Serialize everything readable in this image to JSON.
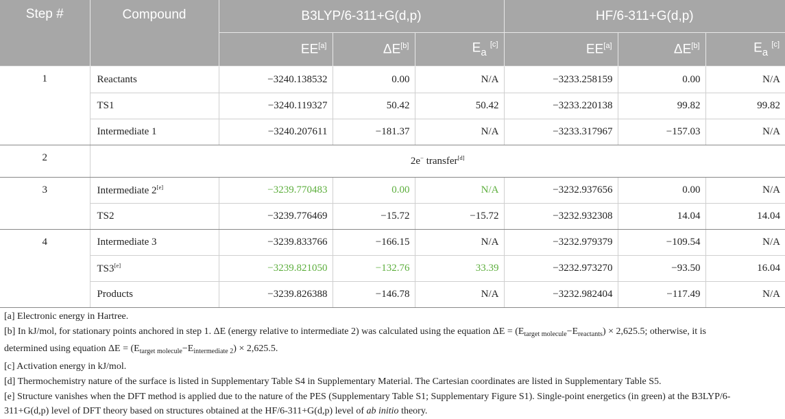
{
  "table": {
    "headers": {
      "step": "Step #",
      "compound": "Compound",
      "group1": "B3LYP/6-311+G(d,p)",
      "group2": "HF/6-311+G(d,p)",
      "ee": "EE",
      "ee_note": "[a]",
      "de": "ΔE",
      "de_note": "[b]",
      "ea_base": "E",
      "ea_sub": "a",
      "ea_note": "[c]"
    },
    "rows": [
      {
        "step": "1",
        "compound": "Reactants",
        "b_ee": "−3240.138532",
        "b_de": "0.00",
        "b_ea": "N/A",
        "h_ee": "−3233.258159",
        "h_de": "0.00",
        "h_ea": "N/A"
      },
      {
        "step": "",
        "compound": "TS1",
        "b_ee": "−3240.119327",
        "b_de": "50.42",
        "b_ea": "50.42",
        "h_ee": "−3233.220138",
        "h_de": "99.82",
        "h_ea": "99.82"
      },
      {
        "step": "",
        "compound": "Intermediate 1",
        "b_ee": "−3240.207611",
        "b_de": "−181.37",
        "b_ea": "N/A",
        "h_ee": "−3233.317967",
        "h_de": "−157.03",
        "h_ea": "N/A"
      },
      {
        "step": "3",
        "compound": "Intermediate 2",
        "compound_note": "[e]",
        "b_ee": "−3239.770483",
        "b_de": "0.00",
        "b_ea": "N/A",
        "h_ee": "−3232.937656",
        "h_de": "0.00",
        "h_ea": "N/A"
      },
      {
        "step": "",
        "compound": "TS2",
        "b_ee": "−3239.776469",
        "b_de": "−15.72",
        "b_ea": "−15.72",
        "h_ee": "−3232.932308",
        "h_de": "14.04",
        "h_ea": "14.04"
      },
      {
        "step": "4",
        "compound": "Intermediate 3",
        "b_ee": "−3239.833766",
        "b_de": "−166.15",
        "b_ea": "N/A",
        "h_ee": "−3232.979379",
        "h_de": "−109.54",
        "h_ea": "N/A"
      },
      {
        "step": "",
        "compound": "TS3",
        "compound_note": "[e]",
        "b_ee": "−3239.821050",
        "b_de": "−132.76",
        "b_ea": "33.39",
        "h_ee": "−3232.973270",
        "h_de": "−93.50",
        "h_ea": "16.04"
      },
      {
        "step": "",
        "compound": "Products",
        "b_ee": "−3239.826388",
        "b_de": "−146.78",
        "b_ea": "N/A",
        "h_ee": "−3232.982404",
        "h_de": "−117.49",
        "h_ea": "N/A"
      }
    ],
    "step2": {
      "step": "2",
      "text": "2e",
      "sup": "−",
      "text2": " transfer",
      "note": "[d]"
    },
    "highlight_color": "#5cae3c"
  },
  "footnotes": {
    "a": "[a] Electronic energy in Hartree.",
    "b1": "[b] In kJ/mol, for stationary points anchored in step 1. ΔE (energy relative to intermediate 2) was calculated using the equation ΔE = (E",
    "b_sub1": "target molecule",
    "b2": "−E",
    "b_sub2": "reactants",
    "b3": ") × 2,625.5; otherwise, it is",
    "b4": "determined using equation ΔE = (E",
    "b_sub3": "target molecule",
    "b5": "−E",
    "b_sub4": "intermediate 2",
    "b6": ") × 2,625.5.",
    "c": "[c] Activation energy in kJ/mol.",
    "d": "[d] Thermochemistry nature of the surface is listed in Supplementary Table S4 in Supplementary Material. The Cartesian coordinates are listed in Supplementary Table S5.",
    "e1": "[e] Structure vanishes when the DFT method is applied due to the nature of the PES (Supplementary Table S1; Supplementary Figure S1). Single-point energetics (in green) at the B3LYP/6-",
    "e2": "311+G(d,p) level of DFT theory based on structures obtained at the HF/6-311+G(d,p) level of ",
    "e2_italic": "ab initio",
    "e3": " theory."
  }
}
